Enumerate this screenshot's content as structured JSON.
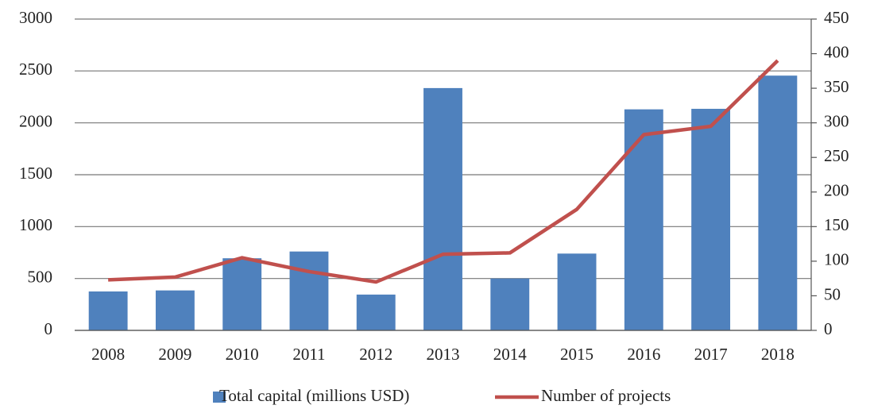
{
  "chart_data": {
    "type": "bar-line",
    "categories": [
      "2008",
      "2009",
      "2010",
      "2011",
      "2012",
      "2013",
      "2014",
      "2015",
      "2016",
      "2017",
      "2018"
    ],
    "series": [
      {
        "name": "Total capital (millions USD)",
        "color": "#4f81bd",
        "type": "bar",
        "values": [
          375,
          385,
          695,
          760,
          345,
          2335,
          500,
          740,
          2130,
          2135,
          2455
        ]
      },
      {
        "name": "Number of projects",
        "color": "#c0504d",
        "type": "line",
        "axis": "y2",
        "values": [
          73,
          77,
          105,
          85,
          70,
          110,
          112,
          175,
          283,
          295,
          390
        ]
      }
    ],
    "ylim": [
      0,
      3000
    ],
    "yticks": [
      0,
      500,
      1000,
      1500,
      2000,
      2500,
      3000
    ],
    "y2lim": [
      0,
      450
    ],
    "y2ticks": [
      0,
      50,
      100,
      150,
      200,
      250,
      300,
      350,
      400,
      450
    ],
    "grid": true,
    "legend": "bottom"
  }
}
